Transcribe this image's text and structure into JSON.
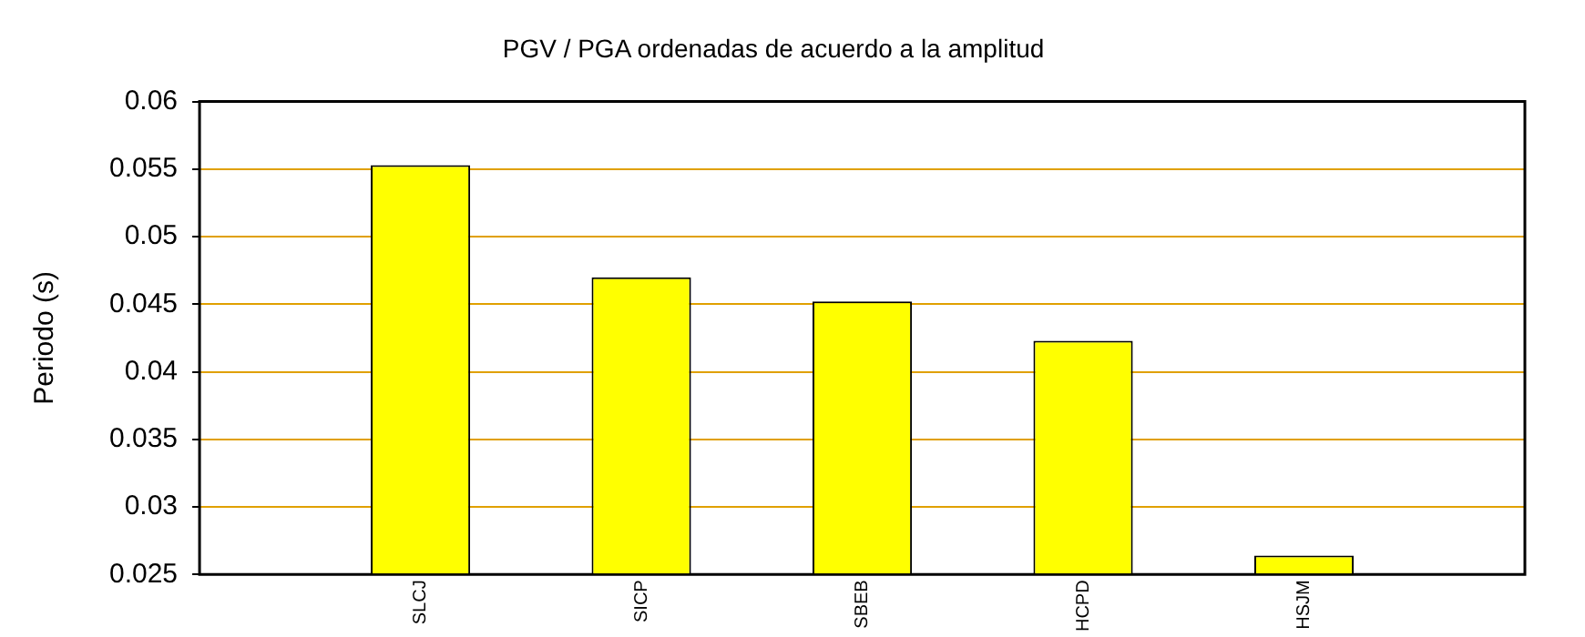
{
  "chart_data": {
    "type": "bar",
    "title": "PGV / PGA ordenadas de acuerdo a la amplitud",
    "ylabel": "Periodo (s)",
    "categories": [
      "SLCJ",
      "SICP",
      "SBEB",
      "HCPD",
      "HSJM"
    ],
    "values": [
      0.0553,
      0.047,
      0.0452,
      0.0423,
      0.0264
    ],
    "color": "#ffff00",
    "ylim": [
      0.025,
      0.06
    ],
    "yticks": [
      0.025,
      0.03,
      0.035,
      0.04,
      0.045,
      0.05,
      0.055,
      0.06
    ],
    "grid": "y",
    "legend": false
  }
}
